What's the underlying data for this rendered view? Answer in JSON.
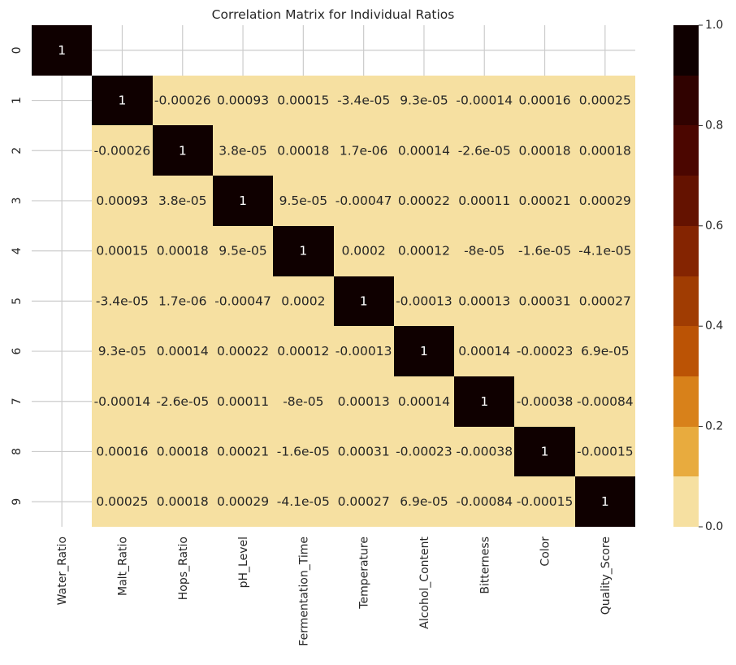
{
  "chart_data": {
    "type": "heatmap",
    "title": "Correlation Matrix for Individual Ratios",
    "xlabel": "",
    "ylabel": "",
    "x_categories": [
      "Water_Ratio",
      "Malt_Ratio",
      "Hops_Ratio",
      "pH_Level",
      "Fermentation_Time",
      "Temperature",
      "Alcohol_Content",
      "Bitterness",
      "Color",
      "Quality_Score"
    ],
    "y_categories": [
      "0",
      "1",
      "2",
      "3",
      "4",
      "5",
      "6",
      "7",
      "8",
      "9"
    ],
    "values": [
      [
        1,
        null,
        null,
        null,
        null,
        null,
        null,
        null,
        null,
        null
      ],
      [
        null,
        1,
        -0.00026,
        0.00093,
        0.00015,
        -3.4e-05,
        9.3e-05,
        -0.00014,
        0.00016,
        0.00025
      ],
      [
        null,
        -0.00026,
        1,
        3.8e-05,
        0.00018,
        1.7e-06,
        0.00014,
        -2.6e-05,
        0.00018,
        0.00018
      ],
      [
        null,
        0.00093,
        3.8e-05,
        1,
        9.5e-05,
        -0.00047,
        0.00022,
        0.00011,
        0.00021,
        0.00029
      ],
      [
        null,
        0.00015,
        0.00018,
        9.5e-05,
        1,
        0.0002,
        0.00012,
        -8e-05,
        -1.6e-05,
        -4.1e-05
      ],
      [
        null,
        -3.4e-05,
        1.7e-06,
        -0.00047,
        0.0002,
        1,
        -0.00013,
        0.00013,
        0.00031,
        0.00027
      ],
      [
        null,
        9.3e-05,
        0.00014,
        0.00022,
        0.00012,
        -0.00013,
        1,
        0.00014,
        -0.00023,
        6.9e-05
      ],
      [
        null,
        -0.00014,
        -2.6e-05,
        0.00011,
        -8e-05,
        0.00013,
        0.00014,
        1,
        -0.00038,
        -0.00084
      ],
      [
        null,
        0.00016,
        0.00018,
        0.00021,
        -1.6e-05,
        0.00031,
        -0.00023,
        -0.00038,
        1,
        -0.00015
      ],
      [
        null,
        0.00025,
        0.00018,
        0.00029,
        -4.1e-05,
        0.00027,
        6.9e-05,
        -0.00084,
        -0.00015,
        1
      ]
    ],
    "labels": [
      [
        "1",
        "",
        "",
        "",
        "",
        "",
        "",
        "",
        "",
        ""
      ],
      [
        "",
        "1",
        "-0.00026",
        "0.00093",
        "0.00015",
        "-3.4e-05",
        "9.3e-05",
        "-0.00014",
        "0.00016",
        "0.00025"
      ],
      [
        "",
        "-0.00026",
        "1",
        "3.8e-05",
        "0.00018",
        "1.7e-06",
        "0.00014",
        "-2.6e-05",
        "0.00018",
        "0.00018"
      ],
      [
        "",
        "0.00093",
        "3.8e-05",
        "1",
        "9.5e-05",
        "-0.00047",
        "0.00022",
        "0.00011",
        "0.00021",
        "0.00029"
      ],
      [
        "",
        "0.00015",
        "0.00018",
        "9.5e-05",
        "1",
        "0.0002",
        "0.00012",
        "-8e-05",
        "-1.6e-05",
        "-4.1e-05"
      ],
      [
        "",
        "-3.4e-05",
        "1.7e-06",
        "-0.00047",
        "0.0002",
        "1",
        "-0.00013",
        "0.00013",
        "0.00031",
        "0.00027"
      ],
      [
        "",
        "9.3e-05",
        "0.00014",
        "0.00022",
        "0.00012",
        "-0.00013",
        "1",
        "0.00014",
        "-0.00023",
        "6.9e-05"
      ],
      [
        "",
        "-0.00014",
        "-2.6e-05",
        "0.00011",
        "-8e-05",
        "0.00013",
        "0.00014",
        "1",
        "-0.00038",
        "-0.00084"
      ],
      [
        "",
        "0.00016",
        "0.00018",
        "0.00021",
        "-1.6e-05",
        "0.00031",
        "-0.00023",
        "-0.00038",
        "1",
        "-0.00015"
      ],
      [
        "",
        "0.00025",
        "0.00018",
        "0.00029",
        "-4.1e-05",
        "0.00027",
        "6.9e-05",
        "-0.00084",
        "-0.00015",
        "1"
      ]
    ],
    "colorbar": {
      "range": [
        0,
        1
      ],
      "ticks": [
        0.0,
        0.2,
        0.4,
        0.6,
        0.8,
        1.0
      ],
      "tick_labels": [
        "0.0",
        "0.2",
        "0.4",
        "0.6",
        "0.8",
        "1.0"
      ],
      "bins": 10,
      "palette": [
        "#f6e0a1",
        "#e8ab3e",
        "#d8811a",
        "#bb5305",
        "#a03c02",
        "#842401",
        "#641200",
        "#4b0600",
        "#300200",
        "#0f0000"
      ]
    },
    "grid": true,
    "legend": "colorbar-right"
  }
}
